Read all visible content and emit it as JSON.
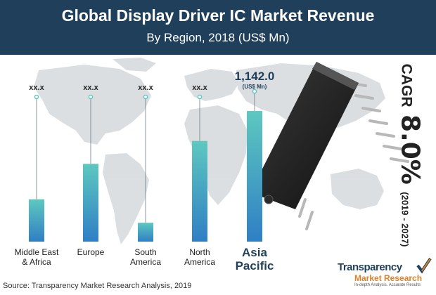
{
  "header": {
    "title": "Global Display Driver IC Market Revenue",
    "subtitle": "By Region, 2018 (US$ Mn)",
    "background": "#1f3f5b"
  },
  "chart_data": {
    "type": "bar",
    "title": "Global Display Driver IC Market Revenue",
    "subtitle": "By Region, 2018 (US$ Mn)",
    "categories": [
      [
        "Middle East",
        "& Africa"
      ],
      [
        "Europe"
      ],
      [
        "South",
        "America"
      ],
      [
        "North",
        "America"
      ],
      [
        "Asia",
        "Pacific"
      ]
    ],
    "values": [
      370,
      680,
      165,
      880,
      1142.0
    ],
    "value_labels": [
      "xx.x",
      "xx.x",
      "xx.x",
      "xx.x",
      "1,142.0"
    ],
    "highlight_unit": "(US$ Mn)",
    "ylim": [
      0,
      1400
    ],
    "grid": false,
    "colors": {
      "bar_top": "#5ec8c0",
      "bar_bottom": "#2f7fc4",
      "highlight_label": "#1f3f5b"
    }
  },
  "cagr": {
    "label": "CAGR",
    "value": "8.0%",
    "period": "(2019 - 2027)"
  },
  "source": "Source: Transparency Market Research Analysis, 2019",
  "logo": {
    "name": "Transparency",
    "sub": "Market Research",
    "tagline": "In-depth Analysis. Accurate Results"
  },
  "icons": [
    "world-map-icon",
    "ic-chip-icon",
    "logo-check-icon"
  ]
}
